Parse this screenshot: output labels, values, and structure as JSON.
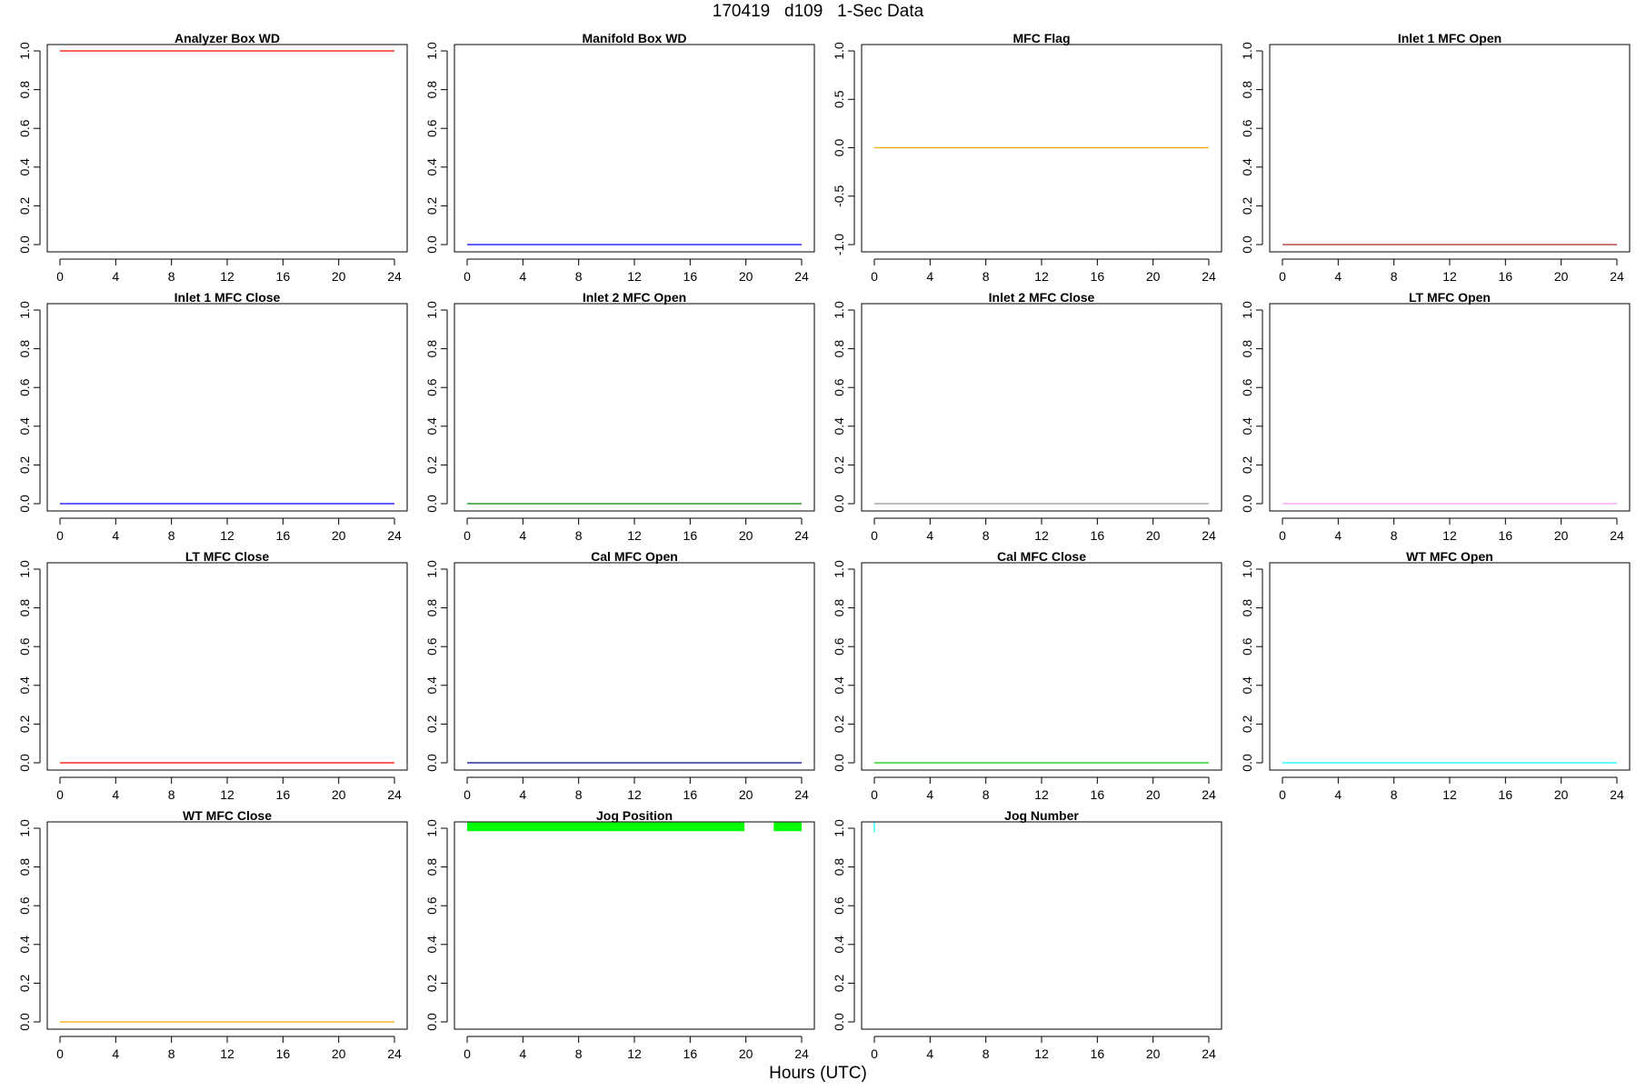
{
  "title": "170419   d109   1-Sec Data",
  "xlabel": "Hours (UTC)",
  "chart_data": [
    {
      "type": "line",
      "title": "Analyzer Box WD",
      "xlim": [
        0,
        24
      ],
      "ylim": [
        0,
        1
      ],
      "x_ticks": [
        0,
        4,
        8,
        12,
        16,
        20,
        24
      ],
      "y_ticks": [
        "0.0",
        "0.2",
        "0.4",
        "0.6",
        "0.8",
        "1.0"
      ],
      "color": "#ff0000",
      "series": [
        {
          "x": [
            0,
            24
          ],
          "y": [
            1,
            1
          ]
        }
      ]
    },
    {
      "type": "line",
      "title": "Manifold Box WD",
      "xlim": [
        0,
        24
      ],
      "ylim": [
        0,
        1
      ],
      "x_ticks": [
        0,
        4,
        8,
        12,
        16,
        20,
        24
      ],
      "y_ticks": [
        "0.0",
        "0.2",
        "0.4",
        "0.6",
        "0.8",
        "1.0"
      ],
      "color": "#0000ff",
      "series": [
        {
          "x": [
            0,
            24
          ],
          "y": [
            0,
            0
          ]
        }
      ]
    },
    {
      "type": "line",
      "title": "MFC Flag",
      "xlim": [
        0,
        24
      ],
      "ylim": [
        -1,
        1
      ],
      "x_ticks": [
        0,
        4,
        8,
        12,
        16,
        20,
        24
      ],
      "y_ticks": [
        "-1.0",
        "-0.5",
        "0.0",
        "0.5",
        "1.0"
      ],
      "color": "#ffa500",
      "series": [
        {
          "x": [
            0,
            24
          ],
          "y": [
            0,
            0
          ]
        }
      ]
    },
    {
      "type": "line",
      "title": "Inlet 1 MFC Open",
      "xlim": [
        0,
        24
      ],
      "ylim": [
        0,
        1
      ],
      "x_ticks": [
        0,
        4,
        8,
        12,
        16,
        20,
        24
      ],
      "y_ticks": [
        "0.0",
        "0.2",
        "0.4",
        "0.6",
        "0.8",
        "1.0"
      ],
      "color": "#a52a2a",
      "series": [
        {
          "x": [
            0,
            24
          ],
          "y": [
            0,
            0
          ]
        }
      ]
    },
    {
      "type": "line",
      "title": "Inlet 1 MFC Close",
      "xlim": [
        0,
        24
      ],
      "ylim": [
        0,
        1
      ],
      "x_ticks": [
        0,
        4,
        8,
        12,
        16,
        20,
        24
      ],
      "y_ticks": [
        "0.0",
        "0.2",
        "0.4",
        "0.6",
        "0.8",
        "1.0"
      ],
      "color": "#0000ff",
      "series": [
        {
          "x": [
            0,
            24
          ],
          "y": [
            0,
            0
          ]
        }
      ]
    },
    {
      "type": "line",
      "title": "Inlet 2 MFC Open",
      "xlim": [
        0,
        24
      ],
      "ylim": [
        0,
        1
      ],
      "x_ticks": [
        0,
        4,
        8,
        12,
        16,
        20,
        24
      ],
      "y_ticks": [
        "0.0",
        "0.2",
        "0.4",
        "0.6",
        "0.8",
        "1.0"
      ],
      "color": "#008000",
      "series": [
        {
          "x": [
            0,
            24
          ],
          "y": [
            0,
            0
          ]
        }
      ]
    },
    {
      "type": "line",
      "title": "Inlet 2 MFC Close",
      "xlim": [
        0,
        24
      ],
      "ylim": [
        0,
        1
      ],
      "x_ticks": [
        0,
        4,
        8,
        12,
        16,
        20,
        24
      ],
      "y_ticks": [
        "0.0",
        "0.2",
        "0.4",
        "0.6",
        "0.8",
        "1.0"
      ],
      "color": "#999999",
      "series": [
        {
          "x": [
            0,
            24
          ],
          "y": [
            0,
            0
          ]
        }
      ]
    },
    {
      "type": "line",
      "title": "LT MFC Open",
      "xlim": [
        0,
        24
      ],
      "ylim": [
        0,
        1
      ],
      "x_ticks": [
        0,
        4,
        8,
        12,
        16,
        20,
        24
      ],
      "y_ticks": [
        "0.0",
        "0.2",
        "0.4",
        "0.6",
        "0.8",
        "1.0"
      ],
      "color": "#ff99ff",
      "series": [
        {
          "x": [
            0,
            24
          ],
          "y": [
            0,
            0
          ]
        }
      ]
    },
    {
      "type": "line",
      "title": "LT MFC Close",
      "xlim": [
        0,
        24
      ],
      "ylim": [
        0,
        1
      ],
      "x_ticks": [
        0,
        4,
        8,
        12,
        16,
        20,
        24
      ],
      "y_ticks": [
        "0.0",
        "0.2",
        "0.4",
        "0.6",
        "0.8",
        "1.0"
      ],
      "color": "#ff0000",
      "series": [
        {
          "x": [
            0,
            24
          ],
          "y": [
            0,
            0
          ]
        }
      ]
    },
    {
      "type": "line",
      "title": "Cal MFC Open",
      "xlim": [
        0,
        24
      ],
      "ylim": [
        0,
        1
      ],
      "x_ticks": [
        0,
        4,
        8,
        12,
        16,
        20,
        24
      ],
      "y_ticks": [
        "0.0",
        "0.2",
        "0.4",
        "0.6",
        "0.8",
        "1.0"
      ],
      "color": "#00008b",
      "series": [
        {
          "x": [
            0,
            24
          ],
          "y": [
            0,
            0
          ]
        }
      ]
    },
    {
      "type": "line",
      "title": "Cal MFC Close",
      "xlim": [
        0,
        24
      ],
      "ylim": [
        0,
        1
      ],
      "x_ticks": [
        0,
        4,
        8,
        12,
        16,
        20,
        24
      ],
      "y_ticks": [
        "0.0",
        "0.2",
        "0.4",
        "0.6",
        "0.8",
        "1.0"
      ],
      "color": "#00cc00",
      "series": [
        {
          "x": [
            0,
            24
          ],
          "y": [
            0,
            0
          ]
        }
      ]
    },
    {
      "type": "line",
      "title": "WT MFC Open",
      "xlim": [
        0,
        24
      ],
      "ylim": [
        0,
        1
      ],
      "x_ticks": [
        0,
        4,
        8,
        12,
        16,
        20,
        24
      ],
      "y_ticks": [
        "0.0",
        "0.2",
        "0.4",
        "0.6",
        "0.8",
        "1.0"
      ],
      "color": "#00ffff",
      "series": [
        {
          "x": [
            0,
            24
          ],
          "y": [
            0,
            0
          ]
        }
      ]
    },
    {
      "type": "line",
      "title": "WT MFC Close",
      "xlim": [
        0,
        24
      ],
      "ylim": [
        0,
        1
      ],
      "x_ticks": [
        0,
        4,
        8,
        12,
        16,
        20,
        24
      ],
      "y_ticks": [
        "0.0",
        "0.2",
        "0.4",
        "0.6",
        "0.8",
        "1.0"
      ],
      "color": "#ffa500",
      "series": [
        {
          "x": [
            0,
            24
          ],
          "y": [
            0,
            0
          ]
        }
      ]
    },
    {
      "type": "area",
      "title": "Jog Position",
      "xlim": [
        0,
        24
      ],
      "ylim": [
        0,
        1
      ],
      "x_ticks": [
        0,
        4,
        8,
        12,
        16,
        20,
        24
      ],
      "y_ticks": [
        "0.0",
        "0.2",
        "0.4",
        "0.6",
        "0.8",
        "1.0"
      ],
      "color": "#00ff00",
      "bands": [
        {
          "x_start": 0,
          "x_end": 19.9,
          "y_low": 0.985,
          "y_high": 1.03
        },
        {
          "x_start": 22,
          "x_end": 24,
          "y_low": 0.985,
          "y_high": 1.03
        }
      ]
    },
    {
      "type": "line",
      "title": "Jog Number",
      "xlim": [
        0,
        24
      ],
      "ylim": [
        0,
        1
      ],
      "x_ticks": [
        0,
        4,
        8,
        12,
        16,
        20,
        24
      ],
      "y_ticks": [
        "0.0",
        "0.2",
        "0.4",
        "0.6",
        "0.8",
        "1.0"
      ],
      "color": "#00ffff",
      "series": [
        {
          "x": [
            0,
            0
          ],
          "y": [
            0.98,
            1.03
          ]
        }
      ]
    }
  ]
}
